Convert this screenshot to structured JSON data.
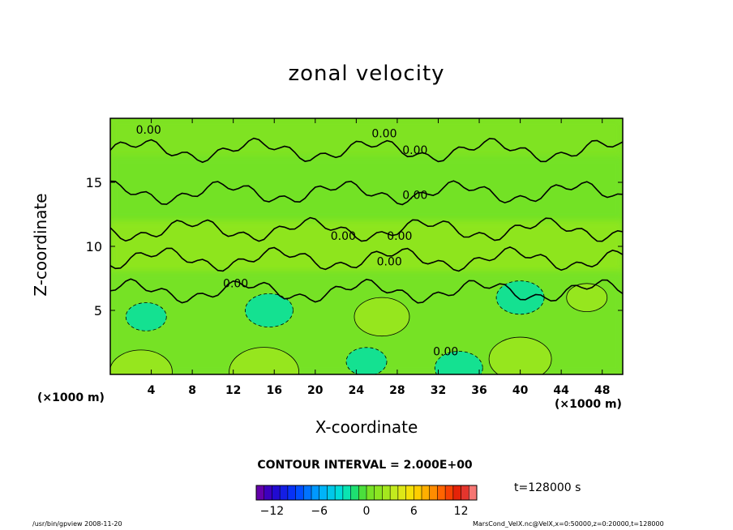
{
  "chart_data": {
    "type": "heatmap",
    "title": "zonal velocity",
    "xlabel": "X-coordinate",
    "ylabel": "Z-coordinate",
    "x_unit_left": "(×1000 m)",
    "x_unit_right": "(×1000 m)",
    "xticks": [
      "4",
      "8",
      "12",
      "16",
      "20",
      "24",
      "28",
      "32",
      "36",
      "40",
      "44",
      "48"
    ],
    "yticks": [
      "5",
      "10",
      "15"
    ],
    "xlim": [
      0,
      50
    ],
    "ylim": [
      0,
      20
    ],
    "contour_labels": [
      "0.00",
      "0.00",
      "0.00",
      "0.00",
      "0.00",
      "0.00",
      "0.00",
      "0.00",
      "0.00"
    ],
    "colorbar": {
      "min": -14,
      "max": 14,
      "ticks": [
        "−12",
        "−6",
        "0",
        "6",
        "12"
      ]
    },
    "contour_interval": "CONTOUR INTERVAL = 2.000E+00",
    "time": "t=128000  s",
    "features": [
      {
        "x": 15.5,
        "z": 5.0,
        "value": -8
      },
      {
        "x": 40.0,
        "z": 6.0,
        "value": -8
      },
      {
        "x": 3.5,
        "z": 4.5,
        "value": -5
      },
      {
        "x": 26.5,
        "z": 4.5,
        "value": 10
      },
      {
        "x": 40.0,
        "z": 1.2,
        "value": 12
      },
      {
        "x": 15.0,
        "z": 0.2,
        "value": 14
      },
      {
        "x": 3.0,
        "z": 0.2,
        "value": 12
      },
      {
        "x": 46.5,
        "z": 6.0,
        "value": 6
      },
      {
        "x": 25.0,
        "z": 1.0,
        "value": -5
      },
      {
        "x": 34.0,
        "z": 0.5,
        "value": -8
      }
    ]
  },
  "footer": {
    "left": "/usr/bin/gpview   2008-11-20",
    "right": "MarsCond_VelX.nc@VelX,x=0:50000,z=0:20000,t=128000"
  }
}
